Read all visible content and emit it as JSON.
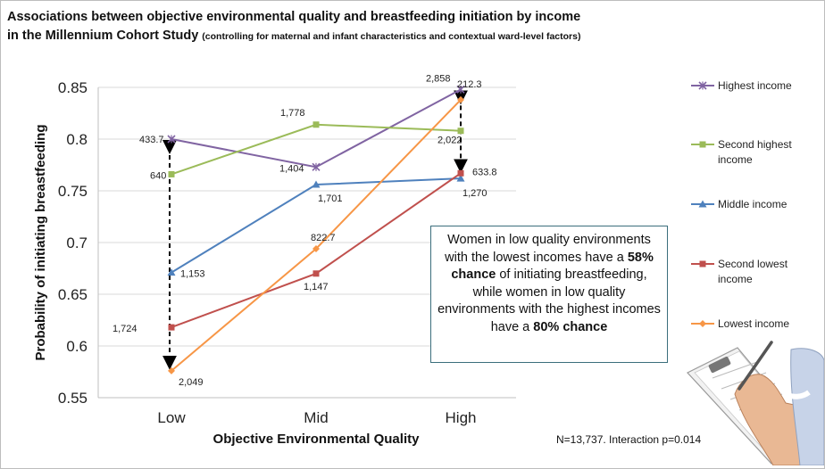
{
  "title_line1": "Associations between objective environmental quality and breastfeeding initiation by income",
  "title_line2_main": "in the Millennium Cohort Study ",
  "title_line2_sub": "(controlling for maternal and infant characteristics and contextual ward-level factors)",
  "callout": {
    "t1": "Women in low quality environments  with the lowest incomes have a ",
    "b1": "58% chance",
    "t2": " of initiating breastfeeding, while women in low quality environments with the highest incomes have a ",
    "b2": "80% chance"
  },
  "footnote": "N=13,737. Interaction p=0.014",
  "illustration": "hand-writing-on-clipboard",
  "chart_data": {
    "type": "line",
    "categories": [
      "Low",
      "Mid",
      "High"
    ],
    "xlabel": "Objective Environmental Quality",
    "ylabel": "Probability of initiating breastfeeding",
    "ylim": [
      0.55,
      0.85
    ],
    "yticks": [
      0.55,
      0.6,
      0.65,
      0.7,
      0.75,
      0.8,
      0.85
    ],
    "ytick_labels": [
      "0.55",
      "0.6",
      "0.65",
      "0.7",
      "0.75",
      "0.8",
      "0.85"
    ],
    "grid": true,
    "legend_position": "right",
    "series": [
      {
        "name": "Highest income",
        "color": "#8064a2",
        "marker": "star",
        "values": [
          0.8,
          0.773,
          0.848
        ],
        "labels": [
          "433.7",
          "1,404",
          "2,858"
        ]
      },
      {
        "name": "Second highest income",
        "color": "#9bbb59",
        "marker": "square",
        "values": [
          0.766,
          0.814,
          0.808
        ],
        "labels": [
          "640",
          "1,778",
          "2,022"
        ]
      },
      {
        "name": "Middle income",
        "color": "#4f81bd",
        "marker": "triangle",
        "values": [
          0.671,
          0.756,
          0.762
        ],
        "labels": [
          "1,153",
          "1,701",
          "1,270"
        ]
      },
      {
        "name": "Second lowest income",
        "color": "#c0504d",
        "marker": "square",
        "values": [
          0.618,
          0.67,
          0.767
        ],
        "labels": [
          "1,724",
          "1,147",
          "633.8"
        ]
      },
      {
        "name": "Lowest income",
        "color": "#f79646",
        "marker": "diamond",
        "values": [
          0.576,
          0.694,
          0.838
        ],
        "labels": [
          "2,049",
          "822.7",
          "212.3"
        ]
      }
    ]
  }
}
